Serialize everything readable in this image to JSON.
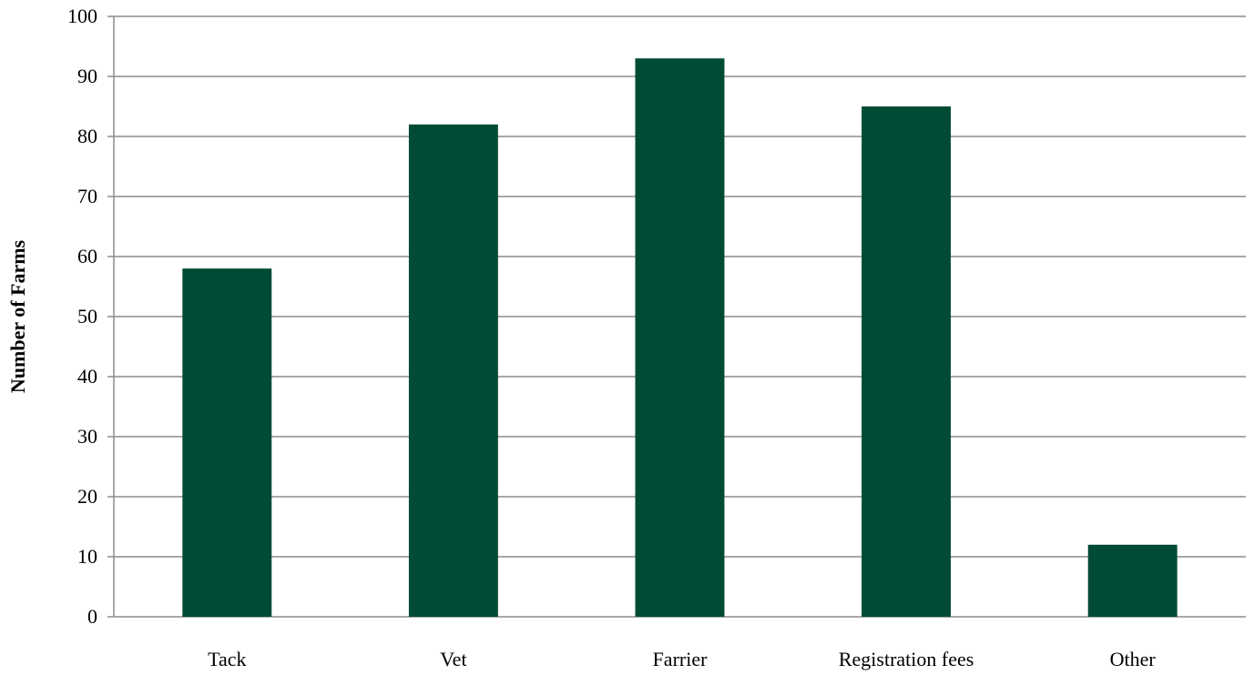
{
  "chart_data": {
    "type": "bar",
    "title": "",
    "xlabel": "",
    "ylabel": "Number of Farms",
    "categories": [
      "Tack",
      "Vet",
      "Farrier",
      "Registration fees",
      "Other"
    ],
    "values": [
      58,
      82,
      93,
      85,
      12
    ],
    "ylim": [
      0,
      100
    ],
    "yticks": [
      0,
      10,
      20,
      30,
      40,
      50,
      60,
      70,
      80,
      90,
      100
    ],
    "grid": true,
    "legend": "none",
    "bar_color": "#004b35",
    "grid_color": "#8c8c8c"
  }
}
